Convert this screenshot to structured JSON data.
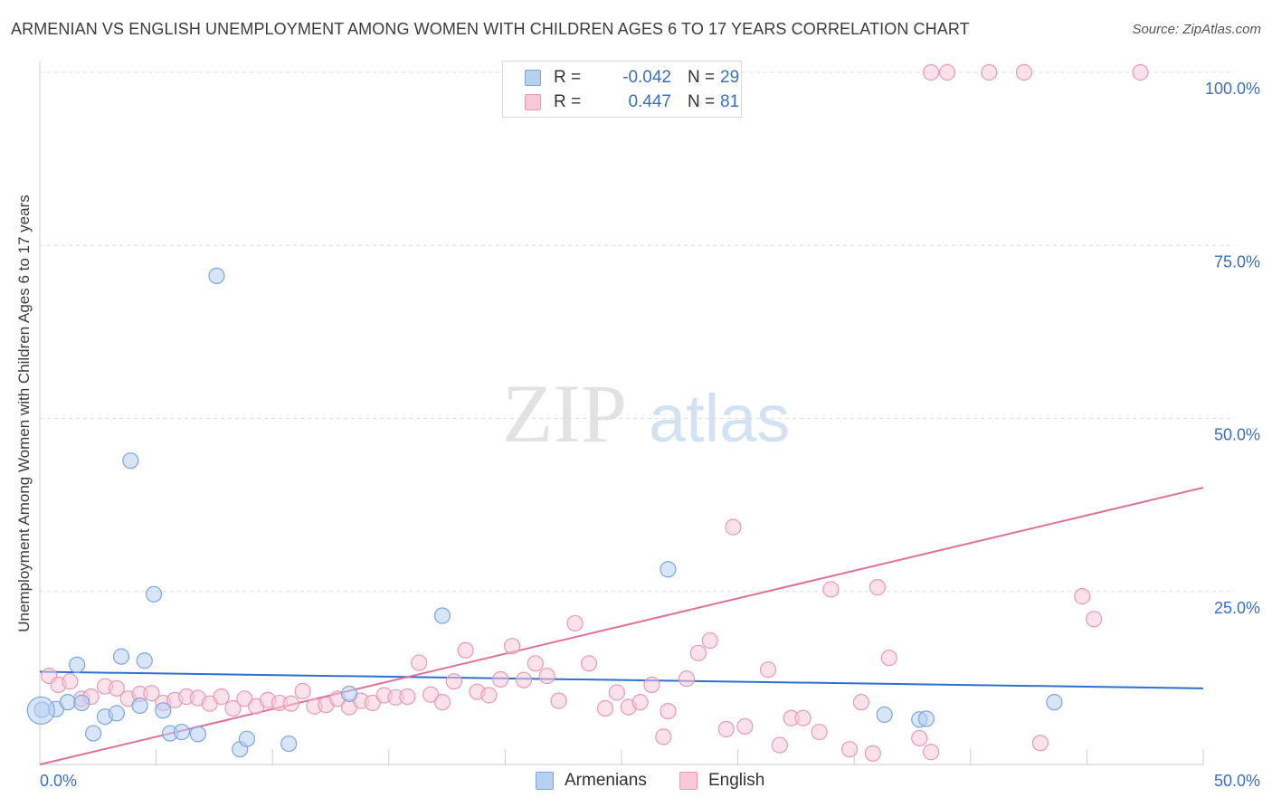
{
  "title": "ARMENIAN VS ENGLISH UNEMPLOYMENT AMONG WOMEN WITH CHILDREN AGES 6 TO 17 YEARS CORRELATION CHART",
  "source": "Source: ZipAtlas.com",
  "watermark": {
    "zip": "ZIP",
    "atlas": "atlas"
  },
  "legend": {
    "armenians": {
      "r_label": "R =",
      "r_value": "-0.042",
      "n_label": "N =",
      "n_value": "29"
    },
    "english": {
      "r_label": "R =",
      "r_value": "0.447",
      "n_label": "N =",
      "n_value": "81"
    }
  },
  "bottom_legend": {
    "armenians": "Armenians",
    "english": "English"
  },
  "colors": {
    "armenians_fill": "#b8d0f0",
    "armenians_stroke": "#7aa6e0",
    "armenians_line": "#2f6fce",
    "english_fill": "#f8c8d8",
    "english_stroke": "#e89ab4",
    "english_line": "#e0709a",
    "axis_text": "#3a6fc4",
    "grid": "#dddddd"
  },
  "chart_data": {
    "type": "scatter",
    "title": "ARMENIAN VS ENGLISH UNEMPLOYMENT AMONG WOMEN WITH CHILDREN AGES 6 TO 17 YEARS CORRELATION CHART",
    "xlabel": "",
    "ylabel": "Unemployment Among Women with Children Ages 6 to 17 years",
    "xlim": [
      0,
      50
    ],
    "ylim": [
      0,
      100
    ],
    "x_tick_labels": [
      "0.0%",
      "50.0%"
    ],
    "y_ticks": [
      25,
      50,
      75,
      100
    ],
    "y_tick_labels": [
      "25.0%",
      "50.0%",
      "75.0%",
      "100.0%"
    ],
    "grid": true,
    "legend_position": "top-center",
    "series": [
      {
        "name": "Armenians",
        "r": -0.042,
        "n": 29,
        "trend": {
          "x": [
            0,
            50
          ],
          "y": [
            13.4,
            11.0
          ]
        },
        "points": [
          [
            0.1,
            7.9
          ],
          [
            0.7,
            8.0
          ],
          [
            1.2,
            9.0
          ],
          [
            1.6,
            14.4
          ],
          [
            1.8,
            8.9
          ],
          [
            2.3,
            4.5
          ],
          [
            2.8,
            6.9
          ],
          [
            3.3,
            7.4
          ],
          [
            3.5,
            15.6
          ],
          [
            3.9,
            43.9
          ],
          [
            4.3,
            8.5
          ],
          [
            4.5,
            15.0
          ],
          [
            4.9,
            24.6
          ],
          [
            5.3,
            7.8
          ],
          [
            5.6,
            4.5
          ],
          [
            6.1,
            4.7
          ],
          [
            6.8,
            4.4
          ],
          [
            7.6,
            70.6
          ],
          [
            8.6,
            2.2
          ],
          [
            8.9,
            3.7
          ],
          [
            10.7,
            3.0
          ],
          [
            13.3,
            10.2
          ],
          [
            17.3,
            21.5
          ],
          [
            27.0,
            28.2
          ],
          [
            36.3,
            7.2
          ],
          [
            37.8,
            6.5
          ],
          [
            38.1,
            6.6
          ],
          [
            43.6,
            9.0
          ],
          [
            0.05,
            7.8
          ]
        ]
      },
      {
        "name": "English",
        "r": 0.447,
        "n": 81,
        "trend": {
          "x": [
            0,
            50
          ],
          "y": [
            0,
            40.0
          ]
        },
        "points": [
          [
            0.4,
            12.8
          ],
          [
            0.8,
            11.5
          ],
          [
            1.3,
            12.0
          ],
          [
            1.8,
            9.5
          ],
          [
            2.2,
            9.8
          ],
          [
            2.8,
            11.3
          ],
          [
            3.3,
            11.0
          ],
          [
            3.8,
            9.5
          ],
          [
            4.3,
            10.2
          ],
          [
            4.8,
            10.3
          ],
          [
            5.3,
            8.9
          ],
          [
            5.8,
            9.3
          ],
          [
            6.3,
            9.8
          ],
          [
            6.8,
            9.6
          ],
          [
            7.3,
            8.8
          ],
          [
            7.8,
            9.8
          ],
          [
            8.3,
            8.1
          ],
          [
            8.8,
            9.5
          ],
          [
            9.3,
            8.4
          ],
          [
            9.8,
            9.3
          ],
          [
            10.3,
            8.9
          ],
          [
            10.8,
            8.8
          ],
          [
            11.3,
            10.6
          ],
          [
            11.8,
            8.4
          ],
          [
            12.3,
            8.6
          ],
          [
            12.8,
            9.5
          ],
          [
            13.3,
            8.3
          ],
          [
            13.8,
            9.2
          ],
          [
            14.3,
            8.9
          ],
          [
            14.8,
            10.0
          ],
          [
            15.3,
            9.7
          ],
          [
            15.8,
            9.8
          ],
          [
            16.3,
            14.7
          ],
          [
            16.8,
            10.1
          ],
          [
            17.3,
            9.0
          ],
          [
            17.8,
            12.0
          ],
          [
            18.3,
            16.5
          ],
          [
            18.8,
            10.5
          ],
          [
            19.3,
            10.0
          ],
          [
            19.8,
            12.3
          ],
          [
            20.3,
            17.1
          ],
          [
            20.8,
            12.2
          ],
          [
            21.3,
            14.6
          ],
          [
            21.8,
            12.8
          ],
          [
            22.3,
            9.2
          ],
          [
            23.0,
            20.4
          ],
          [
            23.6,
            14.6
          ],
          [
            24.3,
            8.1
          ],
          [
            24.8,
            10.4
          ],
          [
            25.3,
            8.3
          ],
          [
            25.8,
            9.0
          ],
          [
            26.3,
            11.5
          ],
          [
            26.8,
            4.0
          ],
          [
            27.0,
            7.7
          ],
          [
            27.8,
            12.4
          ],
          [
            28.3,
            16.1
          ],
          [
            28.8,
            17.9
          ],
          [
            29.5,
            5.1
          ],
          [
            29.8,
            34.3
          ],
          [
            30.3,
            5.5
          ],
          [
            31.3,
            13.7
          ],
          [
            31.8,
            2.8
          ],
          [
            32.3,
            6.7
          ],
          [
            32.8,
            6.7
          ],
          [
            33.5,
            4.7
          ],
          [
            34.0,
            25.3
          ],
          [
            34.8,
            2.2
          ],
          [
            35.3,
            9.0
          ],
          [
            35.8,
            1.6
          ],
          [
            36.0,
            25.6
          ],
          [
            36.5,
            15.4
          ],
          [
            37.8,
            3.8
          ],
          [
            38.3,
            1.8
          ],
          [
            38.3,
            100.0
          ],
          [
            39.0,
            100.0
          ],
          [
            40.8,
            100.0
          ],
          [
            42.3,
            100.0
          ],
          [
            47.3,
            100.0
          ],
          [
            44.8,
            24.3
          ],
          [
            45.3,
            21.0
          ],
          [
            43.0,
            3.1
          ]
        ]
      }
    ]
  }
}
